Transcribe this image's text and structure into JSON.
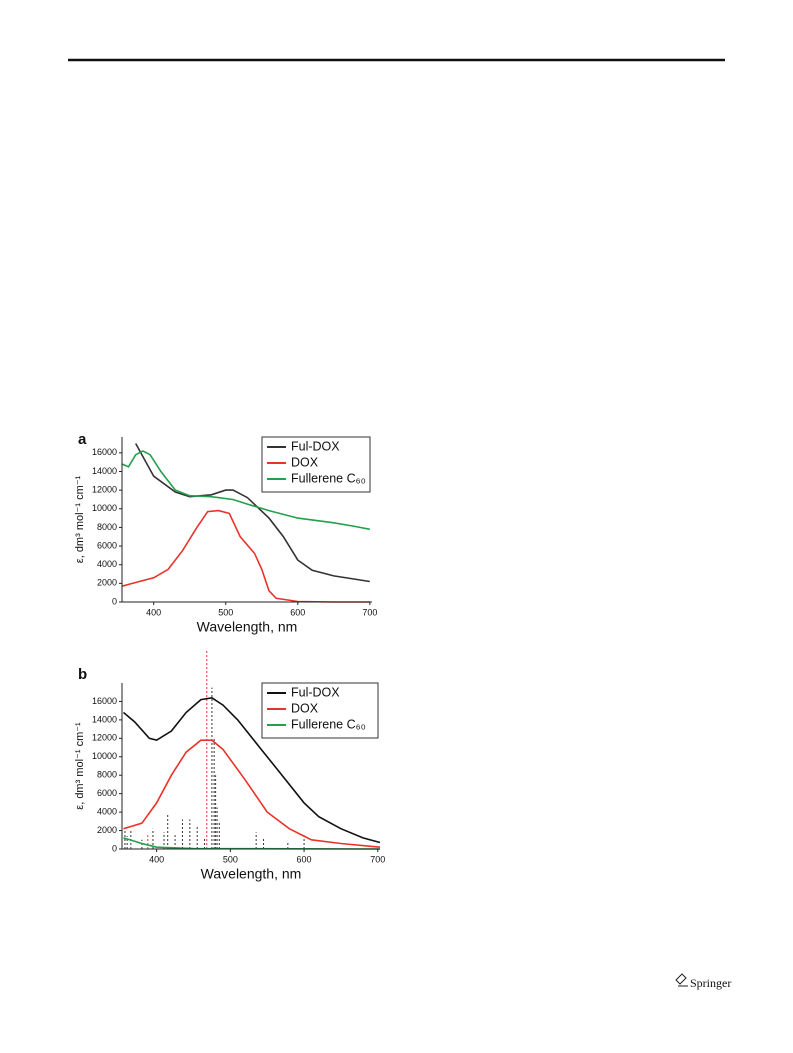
{
  "footer": {
    "publisher": "Springer"
  },
  "chart_data": [
    {
      "type": "line",
      "panel": "a",
      "x_label": "Wavelength, nm",
      "y_label": "ε, dm³ mol⁻¹ cm⁻¹",
      "xlim": [
        356,
        703
      ],
      "ylim": [
        0,
        17700
      ],
      "xticks": [
        400,
        500,
        600,
        700
      ],
      "yticks": [
        0,
        2000,
        4000,
        6000,
        8000,
        10000,
        12000,
        14000,
        16000
      ],
      "series": [
        {
          "name": "Ful-DOX",
          "color": "#333333",
          "x": [
            375,
            400,
            430,
            450,
            480,
            500,
            510,
            530,
            560,
            580,
            600,
            620,
            650,
            700
          ],
          "values": [
            17000,
            13500,
            11800,
            11300,
            11500,
            12000,
            12000,
            11200,
            9000,
            7000,
            4500,
            3400,
            2800,
            2200
          ]
        },
        {
          "name": "DOX",
          "color": "#e8332a",
          "x": [
            356,
            380,
            400,
            420,
            440,
            460,
            475,
            490,
            505,
            520,
            540,
            550,
            560,
            570,
            600,
            650,
            700
          ],
          "values": [
            1700,
            2200,
            2600,
            3500,
            5500,
            8000,
            9700,
            9800,
            9500,
            7000,
            5200,
            3500,
            1200,
            400,
            50,
            0,
            0
          ]
        },
        {
          "name": "Fullerene C₆₀",
          "color": "#22a04b",
          "x": [
            356,
            365,
            375,
            385,
            395,
            410,
            430,
            450,
            480,
            510,
            530,
            560,
            600,
            650,
            680,
            700
          ],
          "values": [
            14800,
            14500,
            15800,
            16200,
            15800,
            14000,
            12000,
            11400,
            11300,
            11000,
            10500,
            9800,
            9000,
            8500,
            8100,
            7800
          ]
        }
      ]
    },
    {
      "type": "line",
      "panel": "b",
      "x_label": "Wavelength, nm",
      "y_label": "ε, dm³ mol⁻¹ cm⁻¹",
      "xlim": [
        353,
        703
      ],
      "ylim": [
        0,
        18000
      ],
      "xticks": [
        400,
        500,
        600,
        700
      ],
      "yticks": [
        0,
        2000,
        4000,
        6000,
        8000,
        10000,
        12000,
        14000,
        16000
      ],
      "series": [
        {
          "name": "Ful-DOX",
          "color": "#111111",
          "x": [
            355,
            370,
            390,
            400,
            420,
            440,
            460,
            475,
            490,
            510,
            540,
            570,
            600,
            620,
            650,
            680,
            703
          ],
          "values": [
            14800,
            13800,
            12000,
            11800,
            12800,
            14800,
            16200,
            16400,
            15600,
            14000,
            11000,
            8000,
            5000,
            3500,
            2200,
            1200,
            700
          ]
        },
        {
          "name": "DOX",
          "color": "#e8332a",
          "x": [
            355,
            380,
            400,
            420,
            440,
            460,
            475,
            490,
            520,
            550,
            580,
            610,
            650,
            703
          ],
          "values": [
            2200,
            2800,
            5000,
            8000,
            10500,
            11800,
            11800,
            10800,
            7500,
            4000,
            2200,
            1000,
            600,
            200
          ]
        },
        {
          "name": "Fullerene C₆₀",
          "color": "#22a04b",
          "x": [
            355,
            380,
            400,
            450,
            703
          ],
          "values": [
            1200,
            600,
            200,
            50,
            0
          ]
        }
      ],
      "sticks": [
        {
          "color": "#e8332a",
          "x": [
            388,
            468
          ],
          "values": [
            1500,
            21500
          ]
        },
        {
          "color": "#333333",
          "x": [
            357,
            360,
            365,
            380,
            395,
            410,
            415,
            425,
            435,
            445,
            455,
            465,
            475,
            478,
            480,
            482,
            485,
            535,
            545,
            578,
            600
          ],
          "values": [
            2000,
            1400,
            2000,
            1000,
            2200,
            1800,
            3800,
            1500,
            3200,
            3200,
            2400,
            1200,
            17500,
            12000,
            8000,
            4500,
            3000,
            1800,
            1200,
            800,
            1500
          ]
        }
      ]
    }
  ]
}
